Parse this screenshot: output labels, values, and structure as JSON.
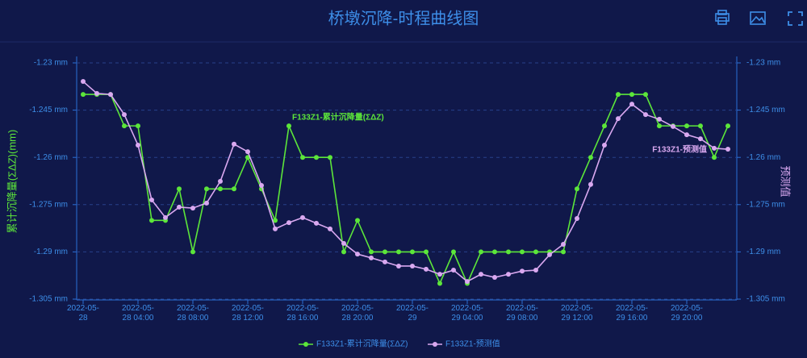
{
  "chart_data": {
    "type": "line",
    "title": "桥墩沉降-时程曲线图",
    "y_label": "累计沉降量(ΣΔZ)(mm)",
    "y2_label": "预测值",
    "annotations": [
      "F133Z1-累计沉降量(ΣΔZ)",
      "F133Z1-预测值"
    ],
    "categories": [
      "2022-05-28",
      null,
      null,
      null,
      "2022-05-28 04:00",
      null,
      null,
      null,
      "2022-05-28 08:00",
      null,
      null,
      null,
      "2022-05-28 12:00",
      null,
      null,
      null,
      "2022-05-28 16:00",
      null,
      null,
      null,
      "2022-05-28 20:00",
      null,
      null,
      null,
      "2022-05-29",
      null,
      null,
      null,
      "2022-05-29 04:00",
      null,
      null,
      null,
      "2022-05-29 08:00",
      null,
      null,
      null,
      "2022-05-29 12:00",
      null,
      null,
      null,
      "2022-05-29 16:00",
      null,
      null,
      null,
      "2022-05-29 20:00",
      null,
      null,
      null
    ],
    "series": [
      {
        "name": "F133Z1-累计沉降量(ΣΔZ)",
        "color": "#5ce63a",
        "values": [
          -1.24,
          -1.24,
          -1.24,
          -1.25,
          -1.25,
          -1.28,
          -1.28,
          -1.27,
          -1.29,
          -1.27,
          -1.27,
          -1.27,
          -1.26,
          -1.27,
          -1.28,
          -1.25,
          -1.26,
          -1.26,
          -1.26,
          -1.29,
          -1.28,
          -1.29,
          -1.29,
          -1.29,
          -1.29,
          -1.29,
          -1.3,
          -1.29,
          -1.3,
          -1.29,
          -1.29,
          -1.29,
          -1.29,
          -1.29,
          -1.29,
          -1.29,
          -1.27,
          -1.26,
          -1.25,
          -1.24,
          -1.24,
          -1.24,
          -1.25,
          -1.25,
          -1.25,
          -1.25,
          -1.26,
          -1.25
        ]
      },
      {
        "name": "F133Z1-预测值",
        "color": "#d9a8f0",
        "axis": "y2",
        "values": [
          -1.2359,
          -1.2397,
          -1.24,
          -1.2464,
          -1.2561,
          -1.2735,
          -1.2791,
          -1.2758,
          -1.2761,
          -1.2745,
          -1.2676,
          -1.2558,
          -1.2582,
          -1.2689,
          -1.2827,
          -1.2807,
          -1.2791,
          -1.2809,
          -1.2827,
          -1.2873,
          -1.2907,
          -1.2919,
          -1.2932,
          -1.2945,
          -1.2945,
          -1.2955,
          -1.2971,
          -1.2958,
          -1.2994,
          -1.2971,
          -1.2981,
          -1.2971,
          -1.2961,
          -1.2958,
          -1.2909,
          -1.2876,
          -1.2794,
          -1.2686,
          -1.2561,
          -1.2477,
          -1.2431,
          -1.2464,
          -1.2479,
          -1.2502,
          -1.2528,
          -1.2541,
          -1.2571,
          -1.2574
        ]
      }
    ],
    "ylim": [
      -1.305,
      -1.23
    ],
    "yticks": [
      {
        "value": -1.305,
        "label": "-1.305 mm"
      },
      {
        "value": -1.29,
        "label": "-1.29 mm"
      },
      {
        "value": -1.275,
        "label": "-1.275 mm"
      },
      {
        "value": -1.26,
        "label": "-1.26 mm"
      },
      {
        "value": -1.245,
        "label": "-1.245 mm"
      },
      {
        "value": -1.23,
        "label": "-1.23 mm"
      }
    ],
    "y2lim": [
      -1.305,
      -1.23
    ],
    "y2ticks": [
      {
        "value": -1.305,
        "label": "-1.305 mm"
      },
      {
        "value": -1.29,
        "label": "-1.29 mm"
      },
      {
        "value": -1.275,
        "label": "-1.275 mm"
      },
      {
        "value": -1.26,
        "label": "-1.26 mm"
      },
      {
        "value": -1.245,
        "label": "-1.245 mm"
      },
      {
        "value": -1.23,
        "label": "-1.23 mm"
      }
    ],
    "grid": true
  }
}
